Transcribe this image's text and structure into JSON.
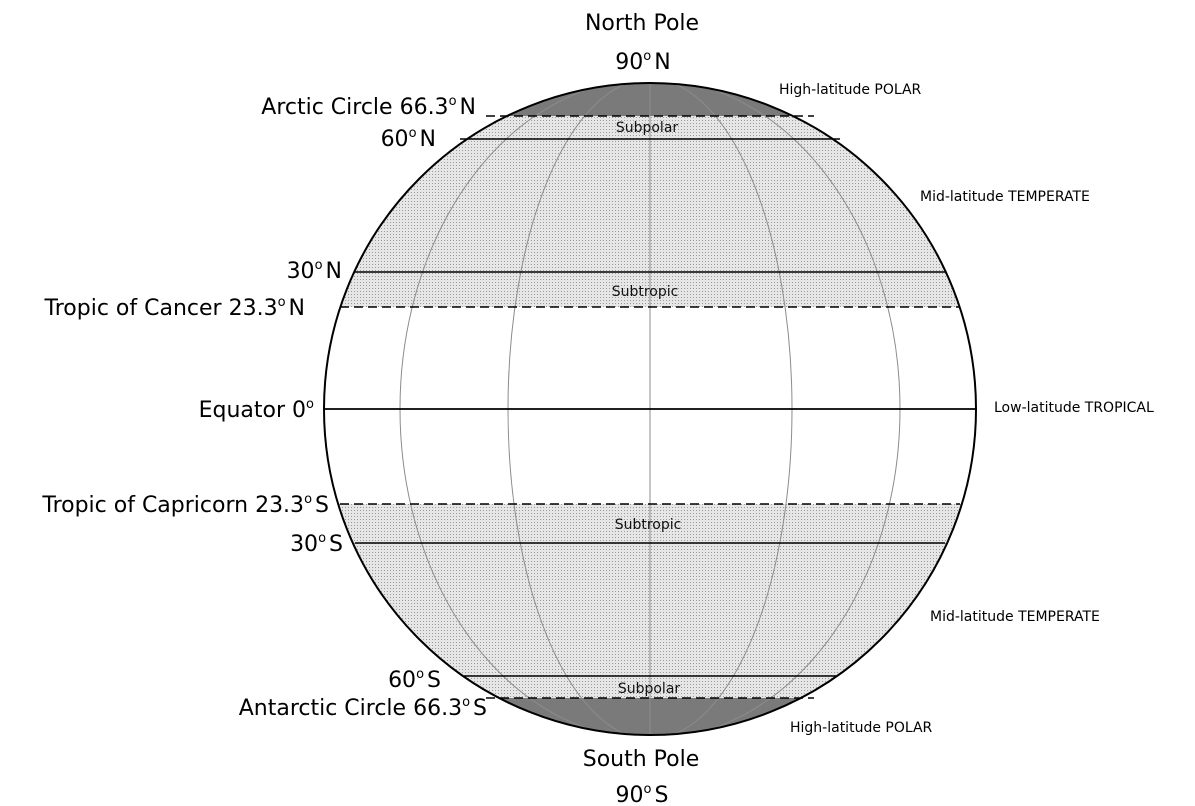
{
  "poles": {
    "north": {
      "name": "North Pole",
      "value": "90",
      "unit_sup": "o",
      "suffix": "N"
    },
    "south": {
      "name": "South Pole",
      "value": "90",
      "unit_sup": "o",
      "suffix": "S"
    }
  },
  "lat_labels": {
    "arctic": {
      "text": "Arctic Circle 66.3",
      "sup": "o",
      "suffix": "N"
    },
    "n60": {
      "text": "60",
      "sup": "o",
      "suffix": "N"
    },
    "n30": {
      "text": "30",
      "sup": "o",
      "suffix": "N"
    },
    "cancer": {
      "text": "Tropic of Cancer 23.3",
      "sup": "o",
      "suffix": "N"
    },
    "equator": {
      "text": "Equator  0",
      "sup": "o",
      "suffix": ""
    },
    "capricorn": {
      "text": "Tropic of Capricorn 23.3",
      "sup": "o",
      "suffix": "S"
    },
    "s30": {
      "text": "30",
      "sup": "o",
      "suffix": "S"
    },
    "s60": {
      "text": "60",
      "sup": "o",
      "suffix": "S"
    },
    "antarctic": {
      "text": "Antarctic Circle 66.3",
      "sup": "o",
      "suffix": "S"
    }
  },
  "zones": {
    "polar_north": "High-latitude POLAR",
    "temperate_north": "Mid-latitude TEMPERATE",
    "tropical": "Low-latitude TROPICAL",
    "temperate_south": "Mid-latitude TEMPERATE",
    "polar_south": "High-latitude POLAR"
  },
  "inner": {
    "subpolar_north": "Subpolar",
    "subtropic_north": "Subtropic",
    "subtropic_south": "Subtropic",
    "subpolar_south": "Subpolar"
  },
  "colors": {
    "polar_cap": "#7a7a7a",
    "stipple_bg": "#e6e6e6",
    "stipple_dot": "#9a9a9a",
    "tropical": "#ffffff",
    "lines": "#000000",
    "meridians": "#8c8c8c"
  }
}
